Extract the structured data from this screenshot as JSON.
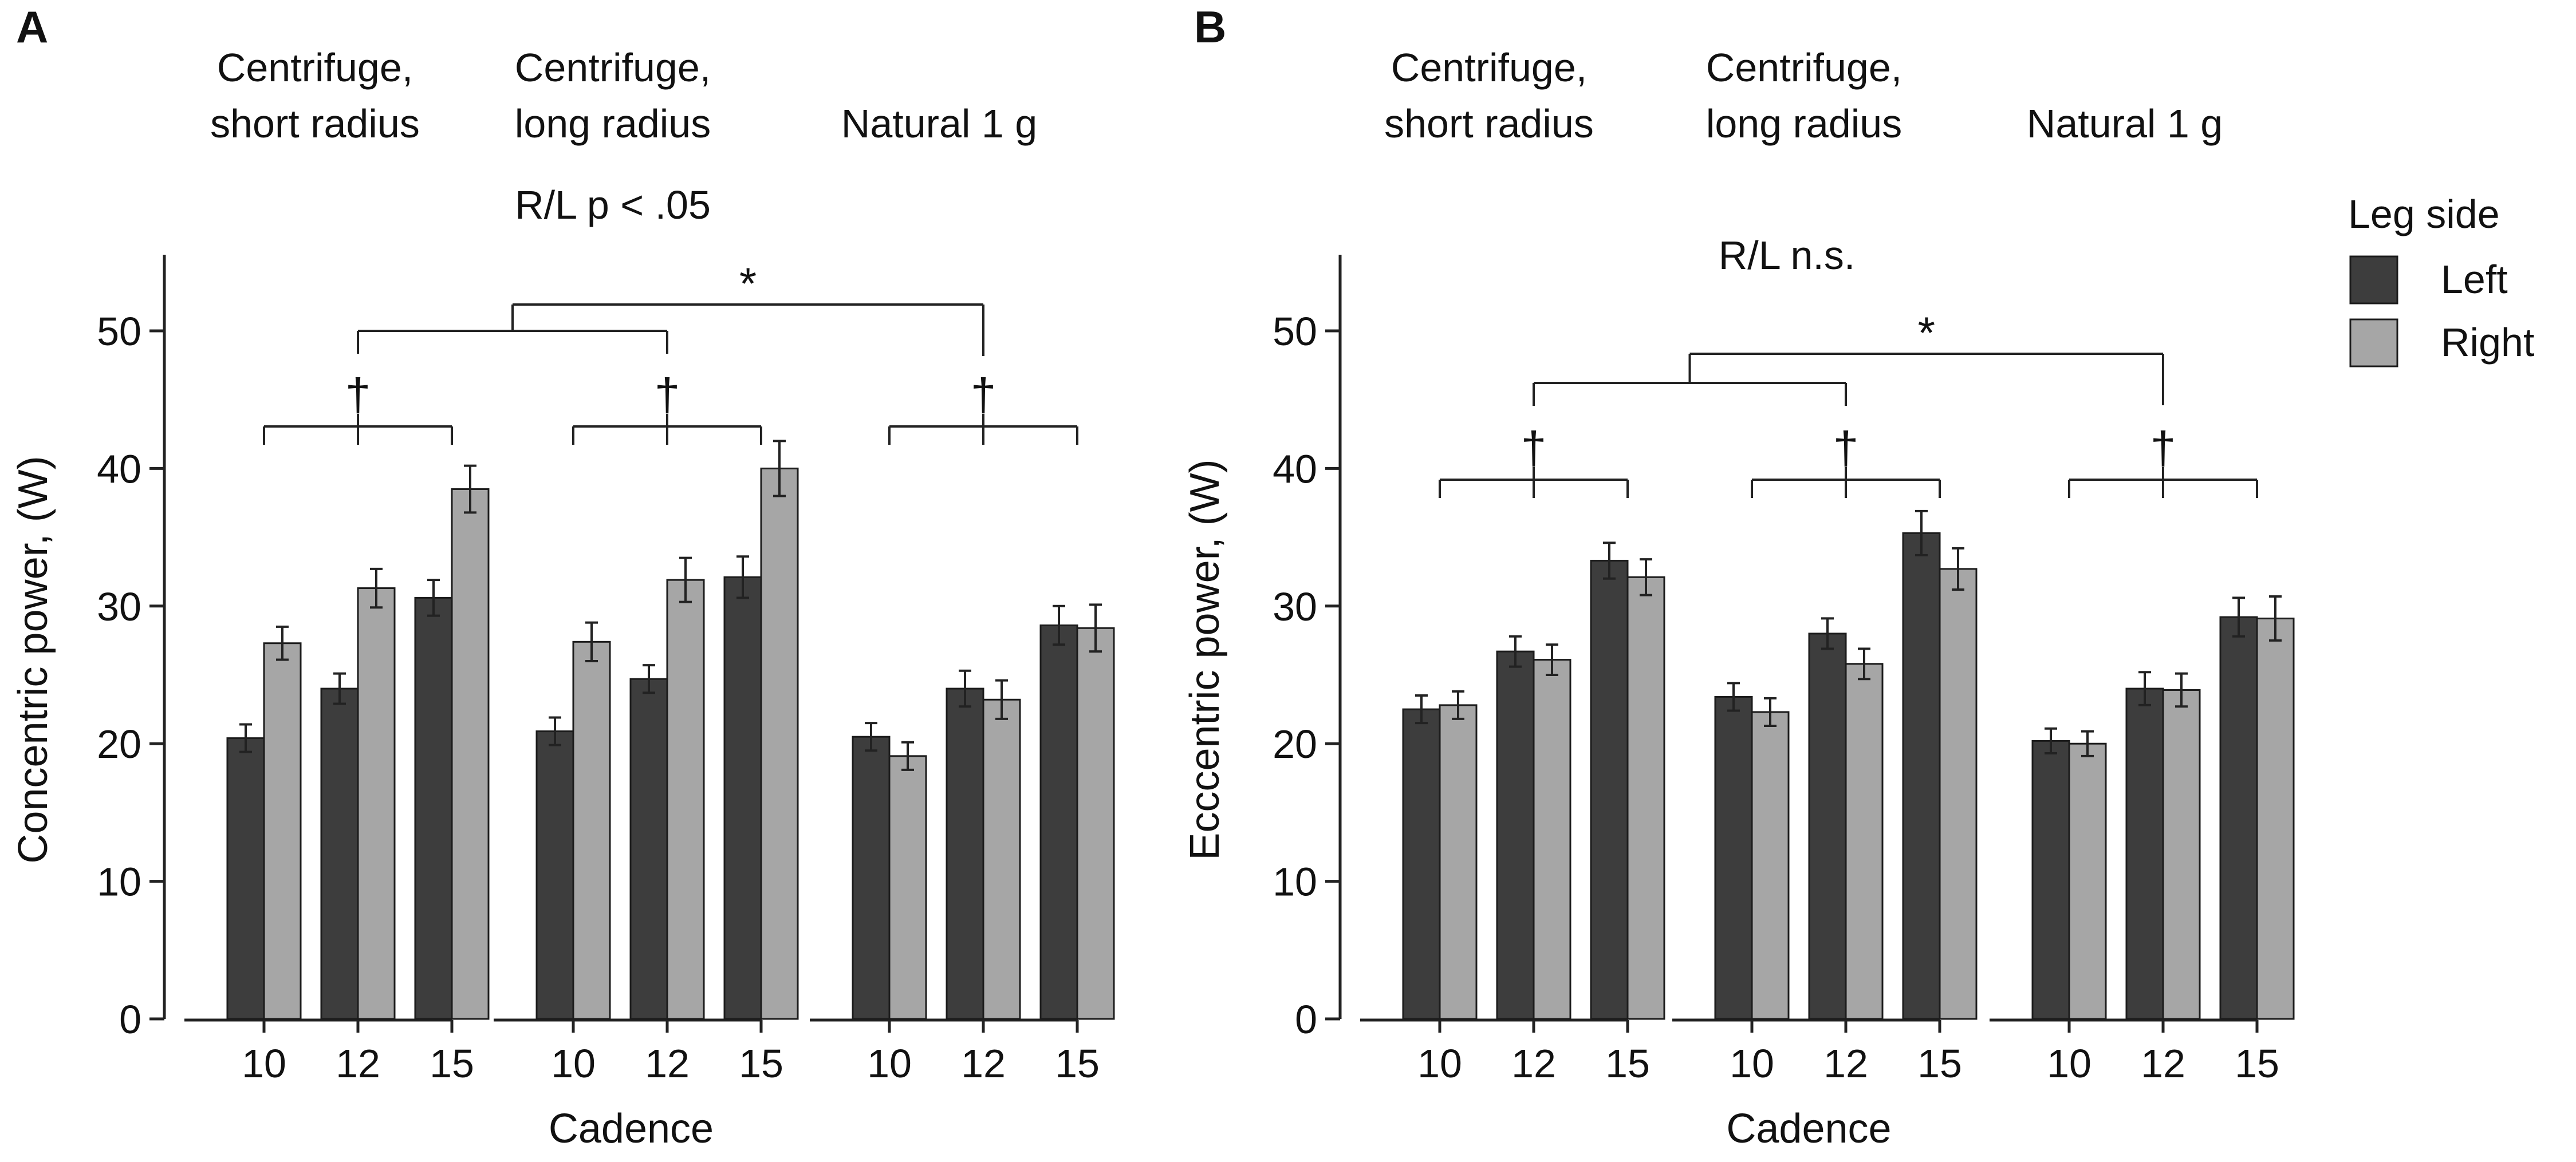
{
  "colors": {
    "left": "#3d3d3d",
    "right": "#a6a6a6",
    "error_bar": "#1a1a1a",
    "axis": "#222222"
  },
  "legend": {
    "title": "Leg side",
    "items": [
      {
        "label": "Left",
        "color": "#3d3d3d"
      },
      {
        "label": "Right",
        "color": "#a6a6a6"
      }
    ]
  },
  "chart_data": [
    {
      "panel_label": "A",
      "type": "bar",
      "ylabel": "Concentric power, (W)",
      "xlabel": "Cadence",
      "ylim": [
        0,
        55
      ],
      "yticks": [
        "0",
        "10",
        "20",
        "30",
        "40",
        "50"
      ],
      "side_note": "",
      "series_names": [
        "Left",
        "Right"
      ],
      "groups": [
        {
          "title_lines": [
            "Centrifuge,",
            "short radius"
          ],
          "note": "",
          "categories": [
            "10",
            "12",
            "15"
          ],
          "left": [
            20.4,
            24.0,
            30.6
          ],
          "right": [
            27.3,
            31.3,
            38.5
          ],
          "left_err": [
            1.0,
            1.1,
            1.3
          ],
          "right_err": [
            1.2,
            1.4,
            1.7
          ],
          "significance": "†"
        },
        {
          "title_lines": [
            "Centrifuge,",
            "long radius"
          ],
          "note": "R/L p < .05",
          "categories": [
            "10",
            "12",
            "15"
          ],
          "left": [
            20.9,
            24.7,
            32.1
          ],
          "right": [
            27.4,
            31.9,
            40.0
          ],
          "left_err": [
            1.0,
            1.0,
            1.5
          ],
          "right_err": [
            1.4,
            1.6,
            2.0
          ],
          "significance": "†"
        },
        {
          "title_lines": [
            "Natural 1 g"
          ],
          "note": "",
          "categories": [
            "10",
            "12",
            "15"
          ],
          "left": [
            20.5,
            24.0,
            28.6
          ],
          "right": [
            19.1,
            23.2,
            28.4
          ],
          "left_err": [
            1.0,
            1.3,
            1.4
          ],
          "right_err": [
            1.0,
            1.4,
            1.7
          ],
          "significance": "†"
        }
      ],
      "top_significance": "*"
    },
    {
      "panel_label": "B",
      "type": "bar",
      "ylabel": "Ecccentric power, (W)",
      "xlabel": "Cadence",
      "ylim": [
        0,
        55
      ],
      "yticks": [
        "0",
        "10",
        "20",
        "30",
        "40",
        "50"
      ],
      "side_note": "R/L n.s.",
      "series_names": [
        "Left",
        "Right"
      ],
      "groups": [
        {
          "title_lines": [
            "Centrifuge,",
            "short radius"
          ],
          "note": "",
          "categories": [
            "10",
            "12",
            "15"
          ],
          "left": [
            22.5,
            26.7,
            33.3
          ],
          "right": [
            22.8,
            26.1,
            32.1
          ],
          "left_err": [
            1.0,
            1.1,
            1.3
          ],
          "right_err": [
            1.0,
            1.1,
            1.3
          ],
          "significance": "†"
        },
        {
          "title_lines": [
            "Centrifuge,",
            "long radius"
          ],
          "note": "",
          "categories": [
            "10",
            "12",
            "15"
          ],
          "left": [
            23.4,
            28.0,
            35.3
          ],
          "right": [
            22.3,
            25.8,
            32.7
          ],
          "left_err": [
            1.0,
            1.1,
            1.6
          ],
          "right_err": [
            1.0,
            1.1,
            1.5
          ],
          "significance": "†"
        },
        {
          "title_lines": [
            "Natural 1 g"
          ],
          "note": "",
          "categories": [
            "10",
            "12",
            "15"
          ],
          "left": [
            20.2,
            24.0,
            29.2
          ],
          "right": [
            20.0,
            23.9,
            29.1
          ],
          "left_err": [
            0.9,
            1.2,
            1.4
          ],
          "right_err": [
            0.9,
            1.2,
            1.6
          ],
          "significance": "†"
        }
      ],
      "top_significance": "*"
    }
  ]
}
